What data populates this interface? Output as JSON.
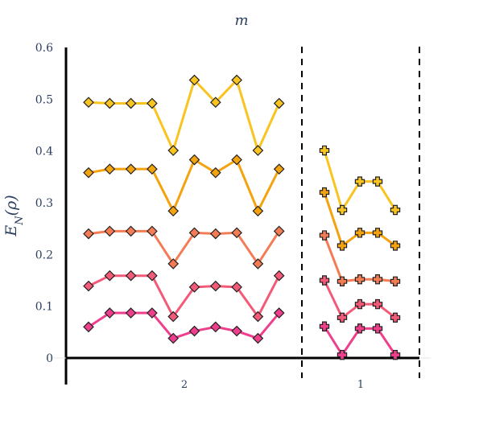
{
  "chart_data": {
    "type": "line",
    "title": "m",
    "ylabel": "E_N(ρ)",
    "xlabel": "",
    "ylim": [
      0,
      0.6
    ],
    "yticks": [
      "0",
      "0.1",
      "0.2",
      "0.3",
      "0.4",
      "0.5",
      "0.6"
    ],
    "grid": false,
    "legend": "none",
    "groups": [
      {
        "label": "2",
        "marker": "diamond",
        "series": [
          {
            "color": "#f9c320",
            "values": [
              0.494,
              0.492,
              0.492,
              0.492,
              0.401,
              0.537,
              0.494,
              0.537,
              0.401,
              0.492
            ]
          },
          {
            "color": "#f5a20f",
            "values": [
              0.358,
              0.365,
              0.365,
              0.365,
              0.284,
              0.383,
              0.358,
              0.383,
              0.284,
              0.365
            ]
          },
          {
            "color": "#f47c55",
            "values": [
              0.24,
              0.245,
              0.245,
              0.245,
              0.182,
              0.242,
              0.24,
              0.242,
              0.182,
              0.245
            ]
          },
          {
            "color": "#f35a78",
            "values": [
              0.139,
              0.159,
              0.159,
              0.159,
              0.08,
              0.137,
              0.139,
              0.137,
              0.08,
              0.159
            ]
          },
          {
            "color": "#ee3e8c",
            "values": [
              0.06,
              0.087,
              0.087,
              0.087,
              0.038,
              0.052,
              0.06,
              0.052,
              0.038,
              0.087
            ]
          }
        ]
      },
      {
        "label": "1",
        "marker": "cross",
        "series": [
          {
            "color": "#f9c320",
            "values": [
              0.401,
              0.286,
              0.341,
              0.341,
              0.286
            ]
          },
          {
            "color": "#f5a20f",
            "values": [
              0.32,
              0.217,
              0.242,
              0.242,
              0.217
            ]
          },
          {
            "color": "#f47c55",
            "values": [
              0.237,
              0.148,
              0.152,
              0.152,
              0.148
            ]
          },
          {
            "color": "#f35a78",
            "values": [
              0.15,
              0.078,
              0.104,
              0.104,
              0.078
            ]
          },
          {
            "color": "#ee3e8c",
            "values": [
              0.061,
              0.006,
              0.057,
              0.057,
              0.006
            ]
          }
        ]
      }
    ]
  }
}
